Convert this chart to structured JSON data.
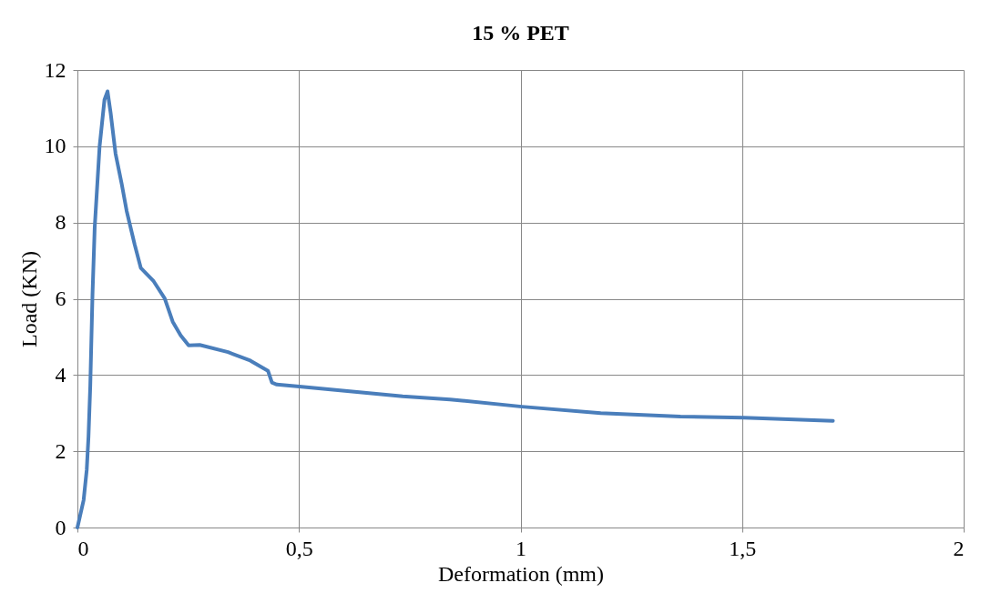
{
  "chart_data": {
    "type": "line",
    "title": "15 % PET",
    "xlabel": "Deformation (mm)",
    "ylabel": "Load (KN)",
    "x": [
      0,
      0.014,
      0.021,
      0.025,
      0.029,
      0.034,
      0.039,
      0.05,
      0.061,
      0.068,
      0.075,
      0.086,
      0.1,
      0.111,
      0.129,
      0.143,
      0.172,
      0.197,
      0.215,
      0.233,
      0.251,
      0.276,
      0.34,
      0.39,
      0.43,
      0.439,
      0.45,
      0.501,
      0.734,
      0.841,
      1.003,
      1.181,
      1.361,
      1.504,
      1.705
    ],
    "series": [
      {
        "color": "#4a7ebb",
        "values": [
          0,
          0.72,
          1.51,
          2.39,
          3.72,
          6.1,
          7.87,
          9.99,
          11.22,
          11.44,
          10.87,
          9.81,
          9.01,
          8.31,
          7.43,
          6.81,
          6.46,
          6.01,
          5.4,
          5.04,
          4.78,
          4.79,
          4.6,
          4.38,
          4.11,
          3.8,
          3.75,
          3.7,
          3.44,
          3.36,
          3.17,
          3.0,
          2.91,
          2.88,
          2.8
        ]
      }
    ],
    "xlim": [
      0,
      2
    ],
    "xticks": [
      0,
      {
        "value": 0.5,
        "label": "0,5"
      },
      1,
      {
        "value": 1.5,
        "label": "1,5"
      },
      2
    ],
    "ylim": [
      0,
      12
    ],
    "yticks": [
      0,
      2,
      4,
      6,
      8,
      10,
      12
    ],
    "grid": true,
    "marker": "none",
    "line_style": "solid"
  }
}
